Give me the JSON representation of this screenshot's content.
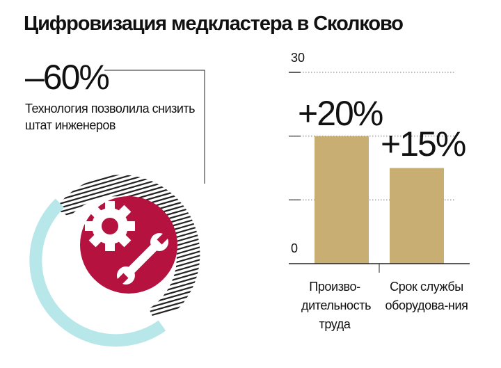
{
  "title": "Цифровизация медкластера в Сколково",
  "left": {
    "value": "–60%",
    "description": "Технология позволила снизить штат инженеров",
    "icon": "gear-wrench-icon",
    "colors": {
      "circle": "#b5123f",
      "ring": "#b8e7ea",
      "stripes": "#222222"
    }
  },
  "chart_data": {
    "type": "bar",
    "categories": [
      "Произво-дительность труда",
      "Срок службы оборудова-ния"
    ],
    "values": [
      20,
      15
    ],
    "data_labels": [
      "+20%",
      "+15%"
    ],
    "ylim": [
      0,
      30
    ],
    "yticks_labeled": [
      "0",
      "30"
    ],
    "grid": true,
    "bar_color": "#c8ae72"
  }
}
